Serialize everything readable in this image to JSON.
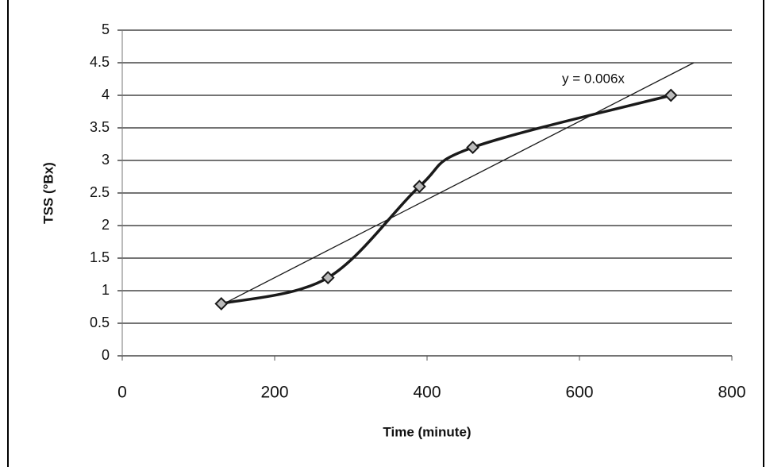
{
  "chart_data": {
    "type": "line",
    "x_label": "Time (minute)",
    "y_label": "TSS (°Bx)",
    "x": [
      130,
      270,
      390,
      460,
      720
    ],
    "series": [
      {
        "color": "#1a1a1a",
        "values": [
          0.8,
          1.2,
          2.6,
          3.2,
          4.0
        ]
      }
    ],
    "smooth": true,
    "marker": "diamond",
    "trendline": {
      "label": "y = 0.006x",
      "slope": 0.006,
      "xlim": [
        130,
        750
      ],
      "color": "#1a1a1a"
    },
    "xlim": [
      0,
      800
    ],
    "xticks": [
      0,
      200,
      400,
      600,
      800
    ],
    "ylim": [
      0,
      5
    ],
    "yticks": [
      0,
      0.5,
      1,
      1.5,
      2,
      2.5,
      3,
      3.5,
      4,
      4.5,
      5
    ],
    "grid": true
  }
}
